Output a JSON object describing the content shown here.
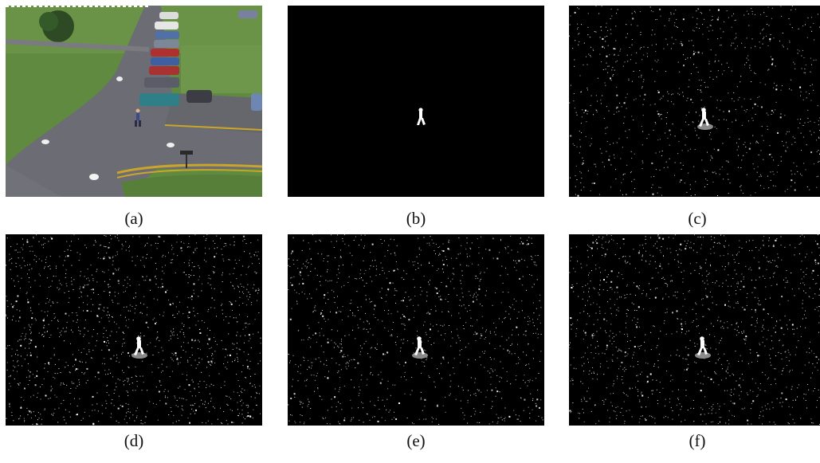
{
  "panels": [
    {
      "label": "(a)",
      "kind": "scene-photo"
    },
    {
      "label": "(b)",
      "kind": "ground-truth-mask"
    },
    {
      "label": "(c)",
      "kind": "detection-mask"
    },
    {
      "label": "(d)",
      "kind": "detection-mask"
    },
    {
      "label": "(e)",
      "kind": "detection-mask"
    },
    {
      "label": "(f)",
      "kind": "detection-mask"
    }
  ],
  "colors": {
    "grass": "#5f8a3f",
    "road": "#6c6c74",
    "mask_bg": "#000000",
    "foreground": "#ffffff",
    "shadow": "#8a8a8a",
    "line_yellow": "#c9a62a"
  }
}
